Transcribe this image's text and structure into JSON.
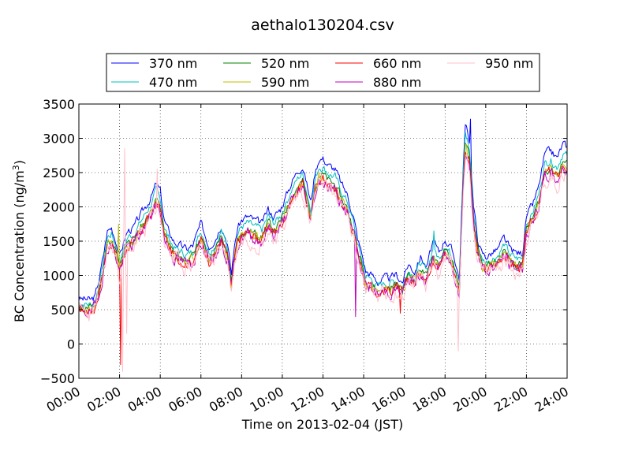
{
  "chart_data": {
    "type": "line",
    "title": "aethalo130204.csv",
    "xlabel": "Time on 2013-02-04 (JST)",
    "ylabel_main": "BC Concentration (ng/m",
    "ylabel_sup": "3",
    "ylabel_end": ")",
    "xlim": [
      0,
      24
    ],
    "ylim": [
      -500,
      3500
    ],
    "grid": true,
    "legend_position": "top",
    "x_tick_values": [
      0,
      2,
      4,
      6,
      8,
      10,
      12,
      14,
      16,
      18,
      20,
      22,
      24
    ],
    "x_tick_labels": [
      "00:00",
      "02:00",
      "04:00",
      "06:00",
      "08:00",
      "10:00",
      "12:00",
      "14:00",
      "16:00",
      "18:00",
      "20:00",
      "22:00",
      "24:00"
    ],
    "y_tick_values": [
      -500,
      0,
      500,
      1000,
      1500,
      2000,
      2500,
      3000,
      3500
    ],
    "y_tick_labels": [
      "−500",
      "0",
      "500",
      "1000",
      "1500",
      "2000",
      "2500",
      "3000",
      "3500"
    ],
    "base_profile": {
      "x": [
        0.0,
        0.3,
        0.6,
        0.8,
        1.0,
        1.2,
        1.4,
        1.6,
        1.8,
        2.0,
        2.2,
        2.4,
        2.7,
        3.0,
        3.3,
        3.6,
        3.8,
        4.0,
        4.2,
        4.4,
        4.7,
        5.0,
        5.3,
        5.6,
        6.0,
        6.2,
        6.4,
        6.7,
        7.0,
        7.3,
        7.5,
        7.6,
        7.8,
        8.0,
        8.3,
        8.6,
        9.0,
        9.3,
        9.6,
        9.9,
        10.2,
        10.5,
        10.8,
        11.0,
        11.2,
        11.4,
        11.6,
        11.8,
        12.0,
        12.3,
        12.6,
        12.9,
        13.2,
        13.5,
        13.7,
        13.9,
        14.1,
        14.4,
        14.7,
        15.0,
        15.3,
        15.6,
        15.9,
        16.2,
        16.5,
        16.8,
        17.1,
        17.4,
        17.7,
        18.0,
        18.3,
        18.5,
        18.7,
        18.9,
        19.0,
        19.2,
        19.4,
        19.6,
        19.8,
        20.0,
        20.3,
        20.6,
        20.9,
        21.2,
        21.5,
        21.8,
        22.0,
        22.3,
        22.6,
        22.9,
        23.2,
        23.5,
        23.8,
        24.0
      ],
      "y": [
        520,
        510,
        500,
        550,
        800,
        1100,
        1450,
        1500,
        1350,
        1100,
        1300,
        1450,
        1500,
        1650,
        1800,
        1950,
        2100,
        2000,
        1600,
        1450,
        1300,
        1250,
        1200,
        1250,
        1550,
        1400,
        1250,
        1350,
        1550,
        1300,
        850,
        1150,
        1500,
        1600,
        1650,
        1600,
        1550,
        1750,
        1650,
        1750,
        1950,
        2150,
        2300,
        2350,
        2100,
        1850,
        2250,
        2450,
        2450,
        2350,
        2300,
        2100,
        1950,
        1650,
        1350,
        1150,
        900,
        850,
        750,
        800,
        800,
        850,
        750,
        1000,
        900,
        1100,
        950,
        1300,
        1150,
        1350,
        1200,
        1050,
        800,
        2400,
        2900,
        2700,
        1800,
        1350,
        1150,
        1100,
        1150,
        1200,
        1350,
        1200,
        1150,
        1150,
        1650,
        1800,
        2050,
        2500,
        2550,
        2450,
        2650,
        2600
      ]
    },
    "series": [
      {
        "name": "370 nm",
        "color": "#0000ff",
        "offset": 110,
        "scale": 1.06,
        "noise": 50,
        "seed": 3
      },
      {
        "name": "470 nm",
        "color": "#00bfbf",
        "offset": 60,
        "scale": 1.03,
        "noise": 50,
        "seed": 7
      },
      {
        "name": "520 nm",
        "color": "#008000",
        "offset": 20,
        "scale": 1.0,
        "noise": 50,
        "seed": 11
      },
      {
        "name": "590 nm",
        "color": "#bfbf00",
        "offset": 0,
        "scale": 0.99,
        "noise": 55,
        "seed": 13
      },
      {
        "name": "660 nm",
        "color": "#ff0000",
        "offset": -10,
        "scale": 0.99,
        "noise": 65,
        "seed": 17
      },
      {
        "name": "880 nm",
        "color": "#bf00bf",
        "offset": -20,
        "scale": 0.98,
        "noise": 80,
        "seed": 19
      },
      {
        "name": "950 nm",
        "color": "#ffc0cb",
        "offset": -40,
        "scale": 0.97,
        "noise": 110,
        "seed": 23
      }
    ],
    "spikes": [
      {
        "series": 6,
        "x": 2.15,
        "y": -400
      },
      {
        "series": 6,
        "x": 2.25,
        "y": 2850
      },
      {
        "series": 6,
        "x": 2.35,
        "y": 150
      },
      {
        "series": 4,
        "x": 2.05,
        "y": -300
      },
      {
        "series": 3,
        "x": 1.95,
        "y": 1750
      },
      {
        "series": 6,
        "x": 3.85,
        "y": 2550
      },
      {
        "series": 0,
        "x": 19.25,
        "y": 3280
      },
      {
        "series": 6,
        "x": 18.65,
        "y": -100
      },
      {
        "series": 5,
        "x": 13.6,
        "y": 400
      },
      {
        "series": 1,
        "x": 17.45,
        "y": 1650
      },
      {
        "series": 4,
        "x": 15.8,
        "y": 450
      }
    ]
  }
}
